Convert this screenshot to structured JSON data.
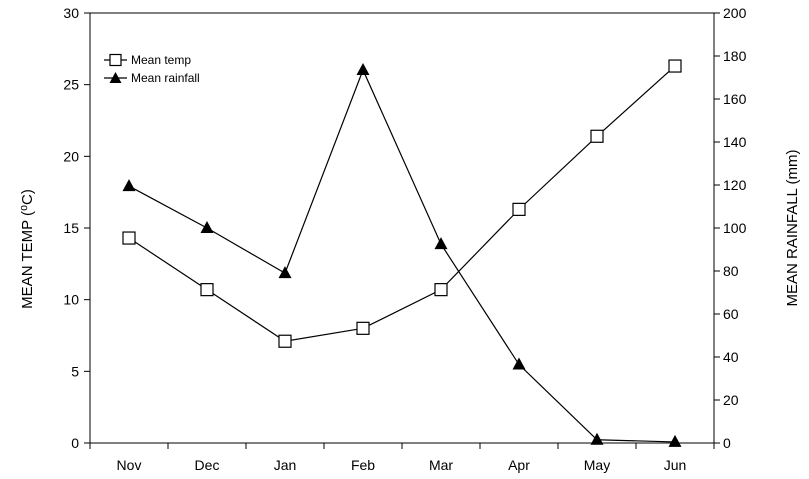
{
  "chart_data": {
    "type": "line",
    "categories": [
      "Nov",
      "Dec",
      "Jan",
      "Feb",
      "Mar",
      "Apr",
      "May",
      "Jun"
    ],
    "ylabel_left": "MEAN TEMP (⁰C)",
    "ylabel_right": "MEAN RAINFALL (mm)",
    "ylim_left": [
      0,
      30
    ],
    "ylim_right": [
      0,
      200
    ],
    "yticks_left": [
      "0",
      "5",
      "10",
      "15",
      "20",
      "25",
      "30"
    ],
    "yticks_right": [
      "0",
      "20",
      "40",
      "60",
      "80",
      "100",
      "120",
      "140",
      "160",
      "180",
      "200"
    ],
    "grid": false,
    "legend_position": "top-left",
    "series": [
      {
        "name": "Mean temp",
        "axis": "left",
        "marker": "open-square",
        "values": [
          14.3,
          10.7,
          7.1,
          8.0,
          10.7,
          16.3,
          21.4,
          26.3
        ]
      },
      {
        "name": "Mean rainfall",
        "axis": "right",
        "marker": "filled-triangle",
        "values": [
          119.5,
          100.0,
          79.0,
          173.5,
          92.5,
          36.5,
          1.5,
          0.5
        ]
      }
    ]
  }
}
